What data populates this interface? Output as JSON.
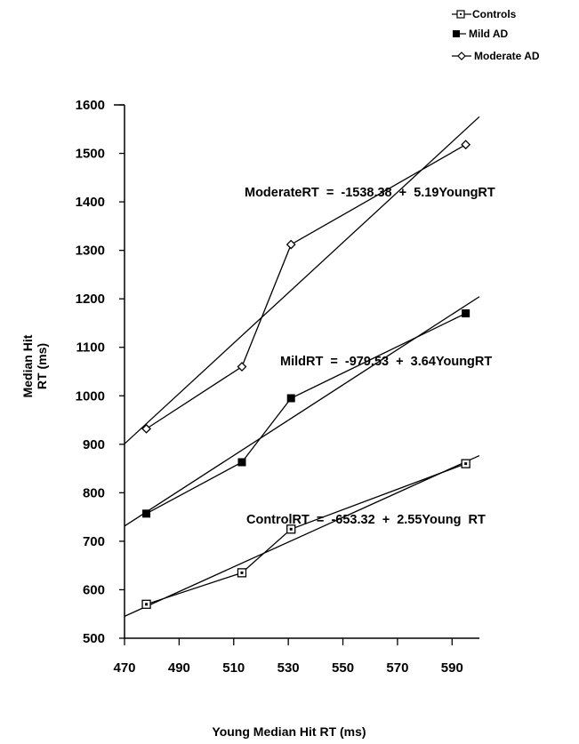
{
  "chart_data": {
    "type": "line",
    "title": "",
    "xlabel": "Young Median Hit RT (ms)",
    "ylabel_lines": [
      "Median Hit",
      "RT (ms)"
    ],
    "xlim": [
      470,
      600
    ],
    "ylim": [
      500,
      1600
    ],
    "x_ticks": [
      470,
      490,
      510,
      530,
      550,
      570,
      590
    ],
    "y_ticks": [
      500,
      600,
      700,
      800,
      900,
      1000,
      1100,
      1200,
      1300,
      1400,
      1500,
      1600
    ],
    "legend": {
      "position": "top-right",
      "entries": [
        {
          "label": "Controls",
          "marker": "square-dot"
        },
        {
          "label": "Mild AD",
          "marker": "filled-square"
        },
        {
          "label": "Moderate AD",
          "marker": "diamond"
        }
      ]
    },
    "series": [
      {
        "name": "Controls",
        "marker": "square-dot",
        "x": [
          478,
          513,
          531,
          595
        ],
        "y": [
          570,
          635,
          725,
          860
        ]
      },
      {
        "name": "Mild AD",
        "marker": "filled-square",
        "x": [
          478,
          513,
          531,
          595
        ],
        "y": [
          757,
          863,
          995,
          1170
        ]
      },
      {
        "name": "Moderate AD",
        "marker": "diamond",
        "x": [
          478,
          513,
          531,
          595
        ],
        "y": [
          932,
          1060,
          1312,
          1518
        ]
      }
    ],
    "regression_lines": [
      {
        "name": "Controls",
        "intercept": -653.32,
        "slope": 2.55,
        "x_range": [
          470,
          600
        ],
        "equation": "ControlRT  =  -653.32  +  2.55Young  RT"
      },
      {
        "name": "Mild AD",
        "intercept": -979.53,
        "slope": 3.64,
        "x_range": [
          470,
          600
        ],
        "equation": "MildRT  =  -979.53  +  3.64YoungRT"
      },
      {
        "name": "Moderate AD",
        "intercept": -1538.38,
        "slope": 5.19,
        "x_range": [
          470,
          600
        ],
        "equation": "ModerateRT  =  -1538.38  +  5.19YoungRT"
      }
    ],
    "grid": false
  }
}
